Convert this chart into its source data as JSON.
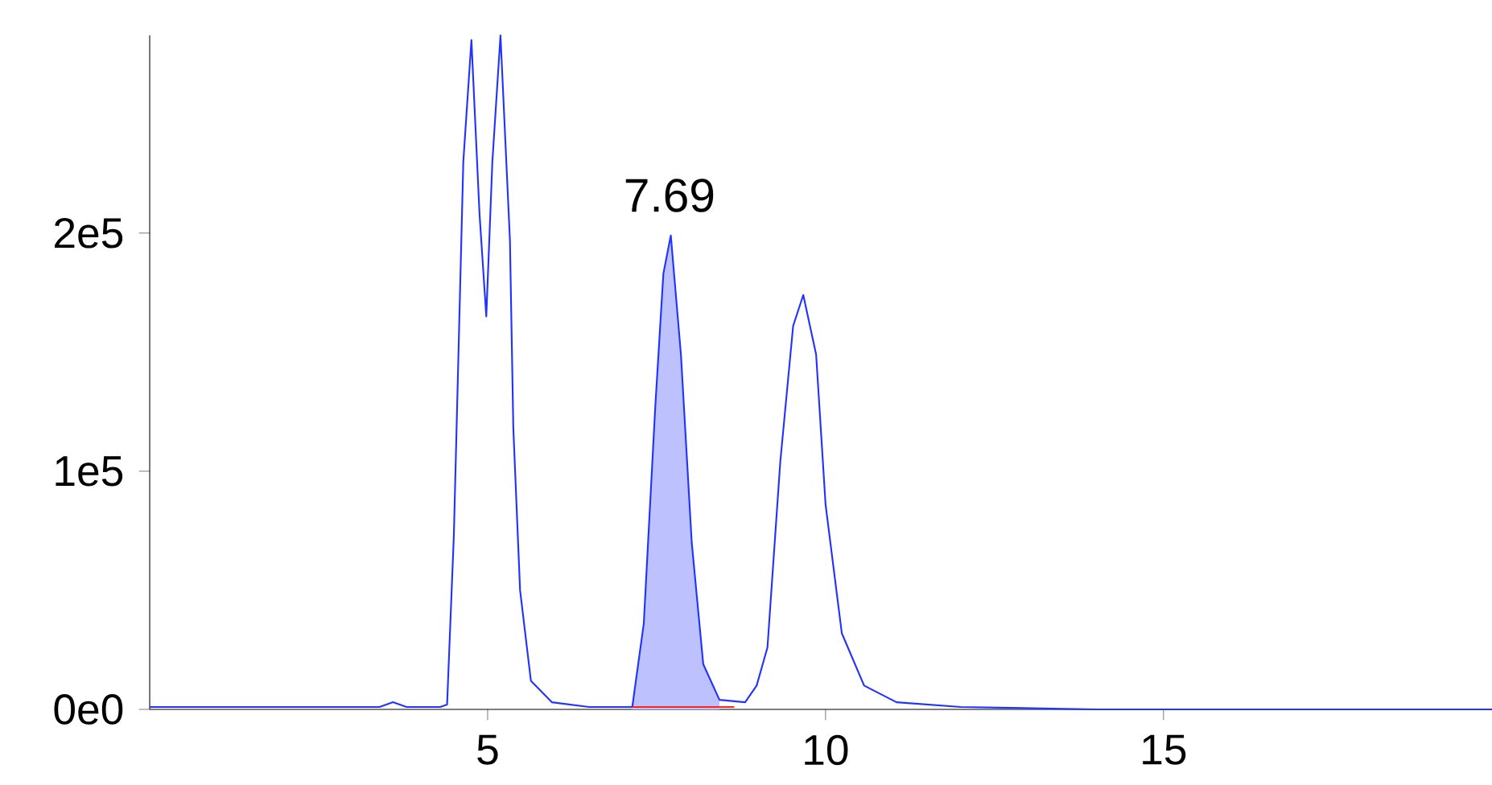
{
  "chart_data": {
    "type": "line",
    "series": [
      {
        "type": "area",
        "color": "#bdc2ff",
        "x": [
          7.14,
          7.31,
          7.48,
          7.6,
          7.71,
          7.86,
          8.02,
          8.19,
          8.43
        ],
        "values": [
          1000,
          36000,
          127000,
          183000,
          199000,
          149000,
          70000,
          19000,
          4000
        ]
      },
      {
        "color": "#2233ff",
        "x": [
          0,
          2,
          3.4,
          3.6,
          3.8,
          4.3,
          4.4,
          4.5,
          4.57,
          4.64,
          4.76,
          4.88,
          4.98,
          5.07,
          5.19,
          5.33,
          5.38,
          5.48,
          5.64,
          5.95,
          6.5,
          7.0,
          7.14,
          7.31,
          7.48,
          7.6,
          7.71,
          7.86,
          8.02,
          8.19,
          8.43,
          8.81,
          8.98,
          9.14,
          9.33,
          9.52,
          9.67,
          9.86,
          10.0,
          10.24,
          10.57,
          11.05,
          12,
          14,
          19.86
        ],
        "values": [
          1000,
          1000,
          1000,
          3000,
          1000,
          1000,
          2000,
          73000,
          151000,
          230000,
          281000,
          208000,
          165000,
          230000,
          283000,
          197000,
          118000,
          50000,
          12000,
          3000,
          1000,
          1000,
          1000,
          36000,
          127000,
          183000,
          199000,
          149000,
          70000,
          19000,
          4000,
          3000,
          10000,
          26000,
          104000,
          161000,
          174000,
          149000,
          86000,
          32000,
          10000,
          3000,
          1000,
          0,
          0
        ]
      },
      {
        "type": "line",
        "color": "#ff2222",
        "x": [
          7.14,
          8.65
        ],
        "values": [
          1000,
          1000
        ]
      }
    ],
    "annotations": [
      {
        "text": "7.69",
        "x": 7.69,
        "y": 199000
      }
    ],
    "xlim": [
      0,
      19.86
    ],
    "ylim": [
      0,
      283000
    ],
    "xticks": [
      5,
      10,
      15
    ],
    "yticks": [
      {
        "value": 0,
        "label": "0e0"
      },
      {
        "value": 100000,
        "label": "1e5"
      },
      {
        "value": 200000,
        "label": "2e5"
      }
    ],
    "grid": false,
    "marker": "none",
    "line_style": "solid"
  }
}
